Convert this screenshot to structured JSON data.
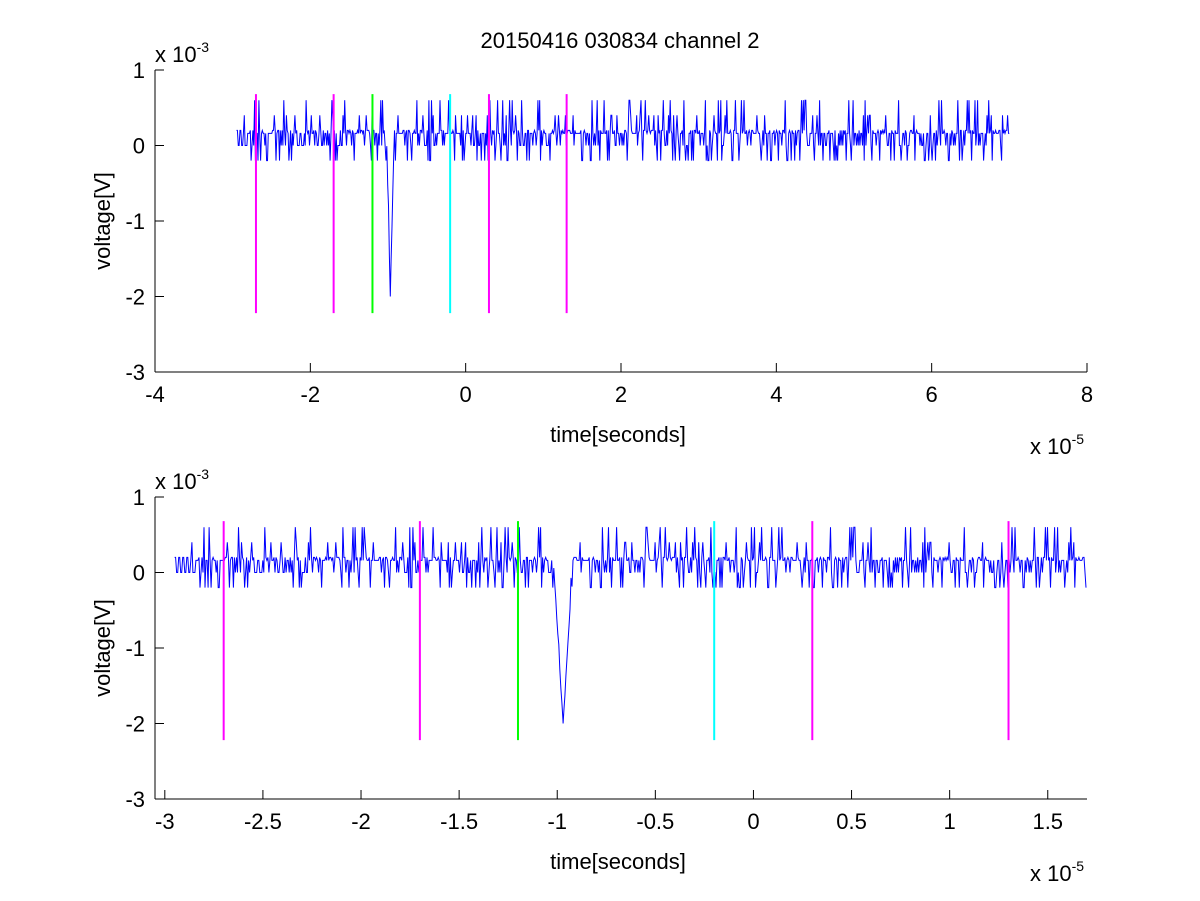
{
  "figure": {
    "title": "20150416 030834 channel 2"
  },
  "chart_data": [
    {
      "type": "line",
      "title": "20150416 030834 channel 2",
      "xlabel": "time[seconds]",
      "ylabel": "voltage[V]",
      "x_exponent_label": "x 10",
      "x_exponent": "-5",
      "y_exponent_label": "x 10",
      "y_exponent": "-3",
      "xlim": [
        -4,
        8
      ],
      "ylim": [
        -3,
        1
      ],
      "xticks": [
        -4,
        -2,
        0,
        2,
        4,
        6,
        8
      ],
      "xtick_labels": [
        "-4",
        "-2",
        "0",
        "2",
        "4",
        "6",
        "8"
      ],
      "yticks": [
        -3,
        -2,
        -1,
        0,
        1
      ],
      "ytick_labels": [
        "-3",
        "-2",
        "-1",
        "0",
        "1"
      ],
      "grid": false,
      "signal": {
        "color": "#0000ff",
        "x_start": -2.95,
        "x_end": 7.0,
        "baseline": 0.08,
        "noise_levels": [
          0.2,
          0.0,
          0.2,
          0.0,
          -0.2,
          0.2,
          0.4,
          0.0,
          0.2,
          -0.2,
          0.6
        ],
        "spike": {
          "x": -0.97,
          "min": -2.0,
          "width": 0.05
        }
      },
      "markers": [
        {
          "x": -2.7,
          "color": "#ff00ff",
          "y_top": 0.68,
          "y_bottom": -2.22
        },
        {
          "x": -1.7,
          "color": "#ff00ff",
          "y_top": 0.68,
          "y_bottom": -2.22
        },
        {
          "x": -1.2,
          "color": "#00ff00",
          "y_top": 0.68,
          "y_bottom": -2.22
        },
        {
          "x": -0.2,
          "color": "#00ffff",
          "y_top": 0.68,
          "y_bottom": -2.22
        },
        {
          "x": 0.3,
          "color": "#ff00ff",
          "y_top": 0.68,
          "y_bottom": -2.22
        },
        {
          "x": 1.3,
          "color": "#ff00ff",
          "y_top": 0.68,
          "y_bottom": -2.22
        }
      ]
    },
    {
      "type": "line",
      "title": "",
      "xlabel": "time[seconds]",
      "ylabel": "voltage[V]",
      "x_exponent_label": "x 10",
      "x_exponent": "-5",
      "y_exponent_label": "x 10",
      "y_exponent": "-3",
      "xlim": [
        -3.05,
        1.7
      ],
      "ylim": [
        -3,
        1
      ],
      "xticks": [
        -3,
        -2.5,
        -2,
        -1.5,
        -1,
        -0.5,
        0,
        0.5,
        1,
        1.5
      ],
      "xtick_labels": [
        "-3",
        "-2.5",
        "-2",
        "-1.5",
        "-1",
        "-0.5",
        "0",
        "0.5",
        "1",
        "1.5"
      ],
      "yticks": [
        -3,
        -2,
        -1,
        0,
        1
      ],
      "ytick_labels": [
        "-3",
        "-2",
        "-1",
        "0",
        "1"
      ],
      "grid": false,
      "signal": {
        "color": "#0000ff",
        "x_start": -2.95,
        "x_end": 1.7,
        "baseline": 0.08,
        "noise_levels": [
          0.2,
          0.0,
          0.2,
          0.0,
          -0.2,
          0.2,
          0.4,
          0.0,
          0.2,
          -0.2,
          0.6
        ],
        "spike": {
          "x": -0.97,
          "min": -2.0,
          "width": 0.05
        }
      },
      "markers": [
        {
          "x": -2.7,
          "color": "#ff00ff",
          "y_top": 0.68,
          "y_bottom": -2.22
        },
        {
          "x": -1.7,
          "color": "#ff00ff",
          "y_top": 0.68,
          "y_bottom": -2.22
        },
        {
          "x": -1.2,
          "color": "#00ff00",
          "y_top": 0.68,
          "y_bottom": -2.22
        },
        {
          "x": -0.2,
          "color": "#00ffff",
          "y_top": 0.68,
          "y_bottom": -2.22
        },
        {
          "x": 0.3,
          "color": "#ff00ff",
          "y_top": 0.68,
          "y_bottom": -2.22
        },
        {
          "x": 1.3,
          "color": "#ff00ff",
          "y_top": 0.68,
          "y_bottom": -2.22
        }
      ]
    }
  ]
}
